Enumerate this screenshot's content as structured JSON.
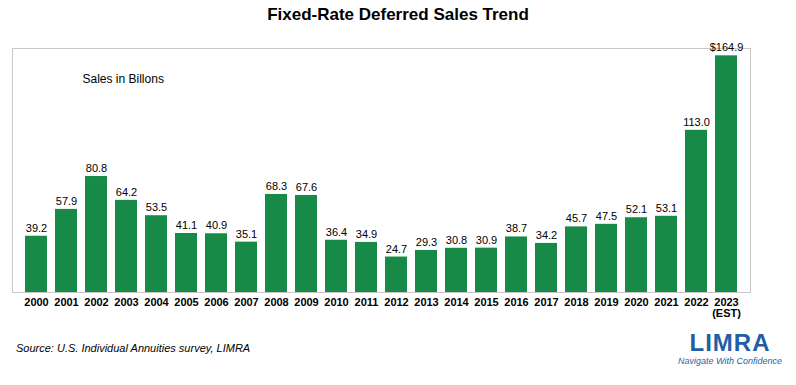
{
  "chart_data": {
    "type": "bar",
    "title": "Fixed-Rate Deferred Sales Trend",
    "annotations": [
      "Sales in Billons"
    ],
    "source": "Source: U.S. Individual Annuities survey, LIMRA",
    "logo": {
      "text": "LIMRA",
      "tagline": "Navigate With Confidence"
    },
    "categories": [
      "2000",
      "2001",
      "2002",
      "2003",
      "2004",
      "2005",
      "2006",
      "2007",
      "2008",
      "2009",
      "2010",
      "2011",
      "2012",
      "2013",
      "2014",
      "2015",
      "2016",
      "2017",
      "2018",
      "2019",
      "2020",
      "2021",
      "2022",
      "2023\n(EST)"
    ],
    "values": [
      39.2,
      57.9,
      80.8,
      64.2,
      53.5,
      41.1,
      40.9,
      35.1,
      68.3,
      67.6,
      36.4,
      34.9,
      24.7,
      29.3,
      30.8,
      30.9,
      38.7,
      34.2,
      45.7,
      47.5,
      52.1,
      53.1,
      113.0,
      164.9
    ],
    "value_labels": [
      "39.2",
      "57.9",
      "80.8",
      "64.2",
      "53.5",
      "41.1",
      "40.9",
      "35.1",
      "68.3",
      "67.6",
      "36.4",
      "34.9",
      "24.7",
      "29.3",
      "30.8",
      "30.9",
      "38.7",
      "34.2",
      "45.7",
      "47.5",
      "52.1",
      "53.1",
      "113.0",
      "$164.9"
    ],
    "color": "#178a48",
    "ylim": [
      0,
      170
    ],
    "grid": false,
    "data_labels": true,
    "tick_labels": "x"
  }
}
